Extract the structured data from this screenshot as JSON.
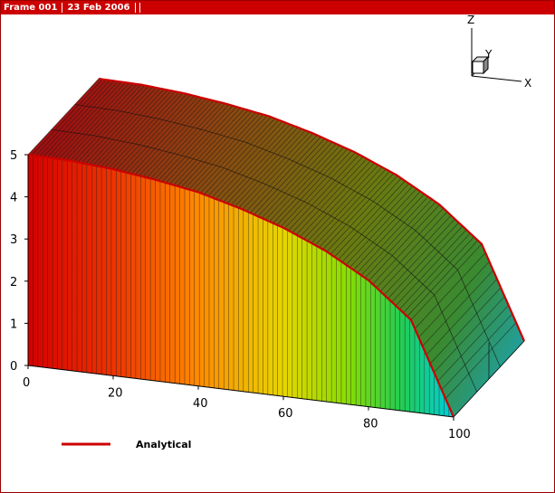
{
  "titlebar": {
    "frame": "Frame 001",
    "date": "23 Feb 2006"
  },
  "legend": {
    "label": "Analytical",
    "color": "#cc0000"
  },
  "axes_triad": {
    "x": "X",
    "y": "Y",
    "z": "Z"
  },
  "chart_data": {
    "type": "3d-surface",
    "title": "",
    "xlabel": "",
    "ylabel": "",
    "zlabel": "",
    "xlim": [
      0,
      100
    ],
    "zlim": [
      0,
      5
    ],
    "x_ticks": [
      "0",
      "20",
      "40",
      "60",
      "80",
      "100"
    ],
    "z_ticks": [
      "0",
      "1",
      "2",
      "3",
      "4",
      "5"
    ],
    "series": [
      {
        "name": "Analytical",
        "x": [
          0,
          10,
          20,
          30,
          40,
          50,
          60,
          70,
          80,
          90,
          100
        ],
        "y": [
          5.0,
          4.98,
          4.9,
          4.77,
          4.6,
          4.33,
          4.0,
          3.57,
          3.0,
          2.18,
          0
        ]
      }
    ],
    "colormap": [
      "#cc0000",
      "#ee4400",
      "#ff8800",
      "#ffcc00",
      "#99dd00",
      "#33cc33",
      "#00cccc"
    ]
  }
}
